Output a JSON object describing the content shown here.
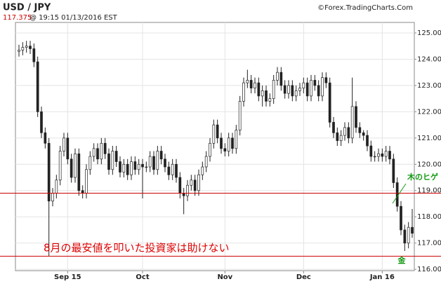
{
  "chart_data": {
    "type": "candlestick",
    "title": "USD / JPY",
    "source": "©Forex.TradingCharts.Com",
    "last_price": 117.375,
    "timestamp": "@ 19:15 01/13/2016 EST",
    "categories": [
      null,
      null,
      null,
      null,
      null,
      null,
      null,
      null,
      null,
      null,
      null,
      null,
      null,
      "Sep 15",
      null,
      null,
      null,
      null,
      null,
      null,
      null,
      null,
      null,
      null,
      null,
      null,
      null,
      null,
      null,
      null,
      null,
      null,
      null,
      "Oct",
      null,
      null,
      null,
      null,
      null,
      null,
      null,
      null,
      null,
      null,
      null,
      null,
      null,
      null,
      null,
      null,
      null,
      null,
      null,
      null,
      null,
      "Nov",
      null,
      null,
      null,
      null,
      null,
      null,
      null,
      null,
      null,
      null,
      null,
      null,
      null,
      null,
      null,
      null,
      null,
      null,
      null,
      null,
      "Dec",
      null,
      null,
      null,
      null,
      null,
      null,
      null,
      null,
      null,
      null,
      null,
      null,
      null,
      null,
      null,
      null,
      null,
      null,
      null,
      null,
      "Jan 16",
      null,
      null,
      null,
      null,
      null,
      null,
      null,
      null
    ],
    "open": [
      124.3,
      124.35,
      124.45,
      124.5,
      124.4,
      123.9,
      122.0,
      121.2,
      120.8,
      118.6,
      118.9,
      119.4,
      120.5,
      121.0,
      120.2,
      119.5,
      120.4,
      119.0,
      118.9,
      119.8,
      120.3,
      120.6,
      120.2,
      120.8,
      120.4,
      119.8,
      120.5,
      120.1,
      119.7,
      120.0,
      119.6,
      120.1,
      119.8,
      120.0,
      119.9,
      119.9,
      120.3,
      119.8,
      120.5,
      120.2,
      119.9,
      119.6,
      120.0,
      119.5,
      118.9,
      118.8,
      119.2,
      119.4,
      119.0,
      119.6,
      119.9,
      120.3,
      120.8,
      121.5,
      121.0,
      120.6,
      120.5,
      121.0,
      120.6,
      121.3,
      122.4,
      123.1,
      123.2,
      122.9,
      123.1,
      122.6,
      122.8,
      122.4,
      122.5,
      123.2,
      123.5,
      123.0,
      122.7,
      123.0,
      122.6,
      122.8,
      122.9,
      123.1,
      122.6,
      123.2,
      123.0,
      122.6,
      123.3,
      123.1,
      121.6,
      121.2,
      120.9,
      121.1,
      121.4,
      121.0,
      122.2,
      121.4,
      121.2,
      121.1,
      120.7,
      120.3,
      120.3,
      120.4,
      120.3,
      120.5,
      120.2,
      119.3,
      118.4,
      117.5,
      117.0,
      117.6
    ],
    "high": [
      124.55,
      124.65,
      124.7,
      124.7,
      124.6,
      124.1,
      122.2,
      121.4,
      121.0,
      119.1,
      119.6,
      120.7,
      121.2,
      121.2,
      120.4,
      120.6,
      120.6,
      119.2,
      120.0,
      120.5,
      120.8,
      120.8,
      121.0,
      121.0,
      120.6,
      120.7,
      120.7,
      120.3,
      120.2,
      120.2,
      120.3,
      120.3,
      120.2,
      120.2,
      120.1,
      120.5,
      120.5,
      120.7,
      120.7,
      120.4,
      120.1,
      120.2,
      120.2,
      119.7,
      119.1,
      119.4,
      119.6,
      119.6,
      119.8,
      120.1,
      120.5,
      121.0,
      121.7,
      121.7,
      121.2,
      120.8,
      121.2,
      121.2,
      121.5,
      122.6,
      123.3,
      123.6,
      123.4,
      123.3,
      123.3,
      123.0,
      123.0,
      122.7,
      123.4,
      123.7,
      123.7,
      123.2,
      123.2,
      123.2,
      123.0,
      123.1,
      123.3,
      123.3,
      123.4,
      123.4,
      123.2,
      123.5,
      123.5,
      123.3,
      121.8,
      121.4,
      121.3,
      121.6,
      121.6,
      123.3,
      122.4,
      121.6,
      121.3,
      121.3,
      120.9,
      120.5,
      120.6,
      120.6,
      120.7,
      120.7,
      120.4,
      119.5,
      118.6,
      117.7,
      117.8,
      118.3
    ],
    "low": [
      124.1,
      124.15,
      124.25,
      124.2,
      123.7,
      121.8,
      121.0,
      120.6,
      116.5,
      118.4,
      118.7,
      119.2,
      120.3,
      120.0,
      119.3,
      119.3,
      118.8,
      118.7,
      118.7,
      119.6,
      120.1,
      120.0,
      120.0,
      120.2,
      119.6,
      119.6,
      119.9,
      119.5,
      119.5,
      119.4,
      119.4,
      119.6,
      119.6,
      118.7,
      119.7,
      119.7,
      119.6,
      119.6,
      120.0,
      119.7,
      119.4,
      119.4,
      119.3,
      118.7,
      118.1,
      118.6,
      119.0,
      118.8,
      118.8,
      119.4,
      119.7,
      120.1,
      120.6,
      120.8,
      120.4,
      120.3,
      120.3,
      120.4,
      120.4,
      121.1,
      122.2,
      122.9,
      122.7,
      122.7,
      122.4,
      122.2,
      122.2,
      122.2,
      122.3,
      123.0,
      122.8,
      122.5,
      122.5,
      122.4,
      122.4,
      122.6,
      122.7,
      122.4,
      122.4,
      122.8,
      122.4,
      122.4,
      122.9,
      121.4,
      121.0,
      120.7,
      120.7,
      120.9,
      120.8,
      120.8,
      121.2,
      121.0,
      120.9,
      120.5,
      120.1,
      120.1,
      120.1,
      120.1,
      120.1,
      120.0,
      119.1,
      118.2,
      117.3,
      116.7,
      116.8,
      117.2
    ],
    "close": [
      124.35,
      124.45,
      124.5,
      124.4,
      123.9,
      122.0,
      121.2,
      120.8,
      118.6,
      118.9,
      119.4,
      120.5,
      121.0,
      120.2,
      119.5,
      120.4,
      119.0,
      118.9,
      119.8,
      120.3,
      120.6,
      120.2,
      120.8,
      120.4,
      119.8,
      120.5,
      120.1,
      119.7,
      120.0,
      119.6,
      120.1,
      119.8,
      120.0,
      119.9,
      119.9,
      120.3,
      119.8,
      120.5,
      120.2,
      119.9,
      119.6,
      120.0,
      119.5,
      118.9,
      118.8,
      119.2,
      119.4,
      119.0,
      119.6,
      119.9,
      120.3,
      120.8,
      121.5,
      121.0,
      120.6,
      120.5,
      121.0,
      120.6,
      121.3,
      122.4,
      123.1,
      123.2,
      122.9,
      123.1,
      122.6,
      122.8,
      122.4,
      122.5,
      123.2,
      123.5,
      123.0,
      122.7,
      123.0,
      122.6,
      122.8,
      122.9,
      123.1,
      122.6,
      123.2,
      123.0,
      122.6,
      123.3,
      123.1,
      121.6,
      121.2,
      120.9,
      121.1,
      121.4,
      121.0,
      122.2,
      121.4,
      121.2,
      121.1,
      120.7,
      120.3,
      120.3,
      120.4,
      120.3,
      120.5,
      120.2,
      119.3,
      118.4,
      117.5,
      117.0,
      117.6,
      117.375
    ],
    "up_color": "#ffffff",
    "down_color": "#222222",
    "candle_outline": "#222222",
    "ylim": [
      115.95,
      125.4
    ],
    "yticks": [
      {
        "value": 116,
        "label": "116.00"
      },
      {
        "value": 117,
        "label": "117.00"
      },
      {
        "value": 118,
        "label": "118.00"
      },
      {
        "value": 119,
        "label": "119.00"
      },
      {
        "value": 120,
        "label": "120.00"
      },
      {
        "value": 121,
        "label": "121.00"
      },
      {
        "value": 122,
        "label": "122.00"
      },
      {
        "value": 123,
        "label": "123.00"
      },
      {
        "value": 124,
        "label": "124.00"
      },
      {
        "value": 125,
        "label": "125.00"
      }
    ],
    "grid": true,
    "hlines": [
      {
        "value": 118.9,
        "color": "#cc0000"
      },
      {
        "value": 116.5,
        "color": "#cc0000"
      }
    ],
    "annotations": [
      {
        "text": "8月の最安値を叩いた投資家は助けない",
        "color": "#dd0000"
      },
      {
        "text": "木のヒゲ",
        "color": "#119911"
      },
      {
        "text": "金",
        "color": "#119911"
      }
    ]
  }
}
